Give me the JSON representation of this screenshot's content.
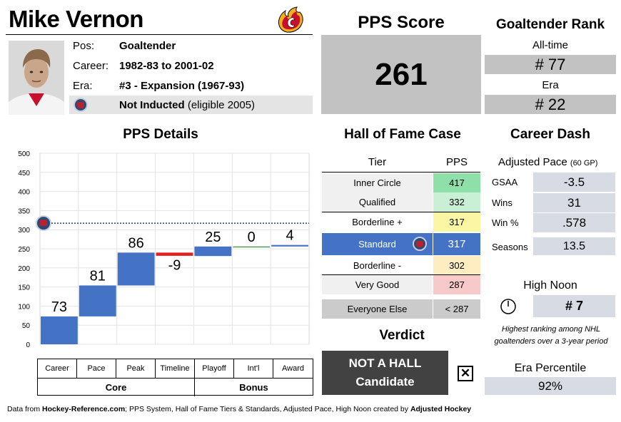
{
  "player": {
    "name": "Mike Vernon",
    "pos_label": "Pos:",
    "pos": "Goaltender",
    "career_label": "Career:",
    "career": "1982-83 to 2001-02",
    "era_label": "Era:",
    "era": "#3 - Expansion (1967-93)",
    "hof_status": "Not Inducted",
    "hof_note": "(eligible 2005)"
  },
  "pps_score": {
    "title": "PPS Score",
    "value": "261"
  },
  "rank": {
    "title": "Goaltender Rank",
    "alltime_label": "All-time",
    "alltime": "# 77",
    "era_label": "Era",
    "era": "# 22"
  },
  "pps_details": {
    "title": "PPS Details",
    "categories": [
      "Career",
      "Pace",
      "Peak",
      "Timeline",
      "Playoff",
      "Int'l",
      "Award"
    ],
    "groups": [
      "Core",
      "Bonus"
    ]
  },
  "chart_data": {
    "type": "bar",
    "subtype": "waterfall",
    "categories": [
      "Career",
      "Pace",
      "Peak",
      "Timeline",
      "Playoff",
      "Int'l",
      "Award"
    ],
    "values": [
      73,
      81,
      86,
      -9,
      25,
      0,
      4
    ],
    "data_labels": [
      "73",
      "81",
      "86",
      "-9",
      "25",
      "0",
      "4"
    ],
    "ylim": [
      0,
      500
    ],
    "yticks": [
      0,
      50,
      100,
      150,
      200,
      250,
      300,
      350,
      400,
      450,
      500
    ],
    "yticks_labels": [
      "0",
      "50",
      "100",
      "150",
      "200",
      "250",
      "300",
      "350",
      "400",
      "450",
      "500"
    ],
    "reference_line": 317,
    "grid": true,
    "colors": {
      "positive": "#4472c4",
      "negative": "#e02020",
      "zero": "#3a8a3a",
      "ref": "#1f3f8f"
    }
  },
  "hof_case": {
    "title": "Hall of Fame Case",
    "col_tier": "Tier",
    "col_pps": "PPS",
    "tiers": [
      {
        "tier": "Inner Circle",
        "pps": "417",
        "bg": "#f0f0f0",
        "pps_bg": "#8fe0a8"
      },
      {
        "tier": "Qualified",
        "pps": "332",
        "bg": "#f0f0f0",
        "pps_bg": "#c9f0d4"
      },
      {
        "tier": "Borderline +",
        "pps": "317",
        "bg": "#ffffff",
        "pps_bg": "#fbf6a3"
      },
      {
        "tier": "Standard",
        "pps": "317",
        "bg": "#4472c4",
        "pps_bg": "#4472c4"
      },
      {
        "tier": "Borderline -",
        "pps": "302",
        "bg": "#ffffff",
        "pps_bg": "#fdedc0"
      },
      {
        "tier": "Very Good",
        "pps": "287",
        "bg": "#f0f0f0",
        "pps_bg": "#f8c9c9"
      },
      {
        "tier": "Everyone Else",
        "pps": "< 287",
        "bg": "#cbcbcb",
        "pps_bg": "#cbcbcb"
      }
    ]
  },
  "verdict": {
    "title": "Verdict",
    "line1": "NOT A HALL",
    "line2": "Candidate",
    "mark": "✕"
  },
  "career_dash": {
    "title": "Career Dash",
    "adjusted_pace": "Adjusted Pace",
    "adjusted_pace_note": "(60 GP)",
    "stats": [
      {
        "label": "GSAA",
        "value": "-3.5"
      },
      {
        "label": "Wins",
        "value": "31"
      },
      {
        "label": "Win %",
        "value": ".578"
      }
    ],
    "seasons_label": "Seasons",
    "seasons": "13.5",
    "high_noon_title": "High Noon",
    "high_noon": "# 7",
    "high_noon_note": "Highest ranking among NHL goaltenders over a 3-year period",
    "era_pct_title": "Era Percentile",
    "era_pct": "92%"
  },
  "footer": {
    "prefix": "Data from ",
    "source": "Hockey-Reference.com",
    "middle": "; PPS System, Hall of Fame Tiers & Standards, Adjusted Pace, High Noon created by ",
    "creator": "Adjusted Hockey"
  }
}
